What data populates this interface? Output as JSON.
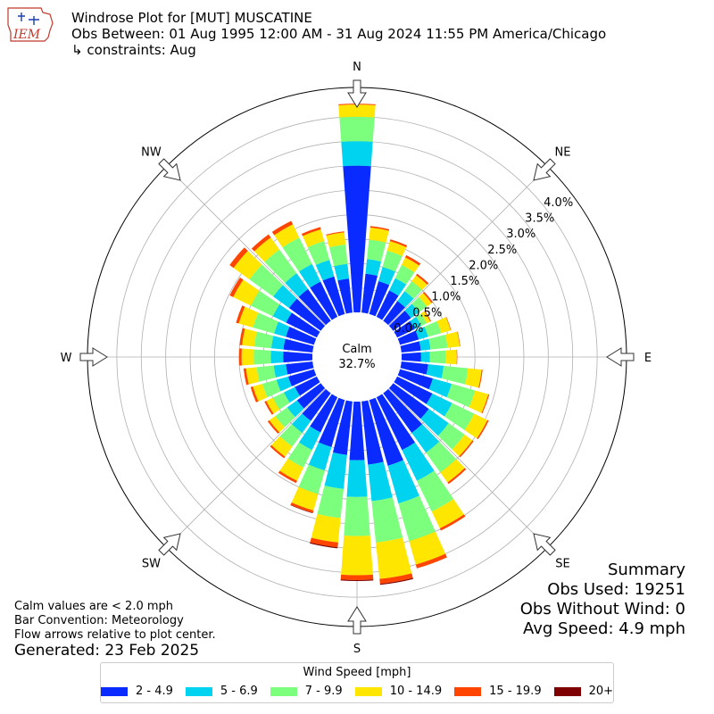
{
  "header": {
    "logo_text": "IEM",
    "title_line1": "Windrose Plot for [MUT] MUSCATINE",
    "title_line2": "Obs Between: 01 Aug 1995 12:00 AM - 31 Aug 2024 11:55 PM America/Chicago",
    "title_line3": "↳ constraints: Aug"
  },
  "summary": {
    "heading": "Summary",
    "obs_used": "Obs Used: 19251",
    "obs_without_wind": "Obs Without Wind: 0",
    "avg_speed": "Avg Speed: 4.9 mph"
  },
  "notes": {
    "line1": "Calm values are < 2.0 mph",
    "line2": "Bar Convention: Meteorology",
    "line3": "Flow arrows relative to plot center.",
    "generated": "Generated: 23 Feb 2025"
  },
  "legend": {
    "title": "Wind Speed [mph]",
    "items": [
      {
        "label": "2 - 4.9",
        "color": "#0a2bff"
      },
      {
        "label": "5 - 6.9",
        "color": "#00d3f0"
      },
      {
        "label": "7 - 9.9",
        "color": "#7cff7c"
      },
      {
        "label": "10 - 14.9",
        "color": "#ffe600"
      },
      {
        "label": "15 - 19.9",
        "color": "#ff4500"
      },
      {
        "label": "20+",
        "color": "#7f0000"
      }
    ]
  },
  "chart_data": {
    "type": "windrose",
    "calm_label": "Calm",
    "calm_percent": "32.7%",
    "radial_unit": "percent",
    "radial_ticks": [
      "0.0%",
      "0.5%",
      "1.0%",
      "1.5%",
      "2.0%",
      "2.5%",
      "3.0%",
      "3.5%",
      "4.0%"
    ],
    "radial_max": 4.6,
    "directions": [
      "N",
      "NE",
      "E",
      "SE",
      "S",
      "SW",
      "W",
      "NW"
    ],
    "speed_bins": [
      "2 - 4.9",
      "5 - 6.9",
      "7 - 9.9",
      "10 - 14.9",
      "15 - 19.9",
      "20+"
    ],
    "sectors": [
      {
        "dir": 0,
        "values": [
          3.0,
          0.5,
          0.5,
          0.25,
          0.02,
          0.0
        ]
      },
      {
        "dir": 10,
        "values": [
          0.8,
          0.3,
          0.4,
          0.25,
          0.03,
          0.0
        ]
      },
      {
        "dir": 20,
        "values": [
          0.7,
          0.3,
          0.35,
          0.2,
          0.04,
          0.0
        ]
      },
      {
        "dir": 30,
        "values": [
          0.6,
          0.28,
          0.3,
          0.17,
          0.05,
          0.0
        ]
      },
      {
        "dir": 40,
        "values": [
          0.5,
          0.25,
          0.25,
          0.15,
          0.04,
          0.0
        ]
      },
      {
        "dir": 50,
        "values": [
          0.45,
          0.2,
          0.2,
          0.12,
          0.03,
          0.0
        ]
      },
      {
        "dir": 60,
        "values": [
          0.4,
          0.15,
          0.12,
          0.08,
          0.02,
          0.0
        ]
      },
      {
        "dir": 70,
        "values": [
          0.4,
          0.2,
          0.28,
          0.2,
          0.01,
          0.0
        ]
      },
      {
        "dir": 80,
        "values": [
          0.4,
          0.2,
          0.35,
          0.25,
          0.01,
          0.0
        ]
      },
      {
        "dir": 90,
        "values": [
          0.4,
          0.18,
          0.33,
          0.22,
          0.01,
          0.0
        ]
      },
      {
        "dir": 100,
        "values": [
          0.55,
          0.32,
          0.5,
          0.28,
          0.02,
          0.0
        ]
      },
      {
        "dir": 110,
        "values": [
          0.7,
          0.4,
          0.5,
          0.28,
          0.02,
          0.0
        ]
      },
      {
        "dir": 120,
        "values": [
          0.8,
          0.45,
          0.5,
          0.3,
          0.03,
          0.0
        ]
      },
      {
        "dir": 130,
        "values": [
          0.9,
          0.5,
          0.4,
          0.2,
          0.03,
          0.0
        ]
      },
      {
        "dir": 140,
        "values": [
          1.0,
          0.5,
          0.5,
          0.25,
          0.04,
          0.0
        ]
      },
      {
        "dir": 150,
        "values": [
          1.2,
          0.7,
          0.7,
          0.38,
          0.05,
          0.0
        ]
      },
      {
        "dir": 160,
        "values": [
          1.4,
          0.8,
          0.8,
          0.5,
          0.08,
          0.0
        ]
      },
      {
        "dir": 170,
        "values": [
          1.3,
          0.75,
          0.85,
          0.75,
          0.1,
          0.02
        ]
      },
      {
        "dir": 180,
        "values": [
          1.2,
          0.75,
          0.8,
          0.8,
          0.1,
          0.02
        ]
      },
      {
        "dir": 190,
        "values": [
          1.1,
          0.7,
          0.6,
          0.5,
          0.1,
          0.02
        ]
      },
      {
        "dir": 200,
        "values": [
          1.0,
          0.5,
          0.5,
          0.35,
          0.05,
          0.01
        ]
      },
      {
        "dir": 210,
        "values": [
          0.8,
          0.4,
          0.4,
          0.3,
          0.05,
          0.0
        ]
      },
      {
        "dir": 220,
        "values": [
          0.7,
          0.3,
          0.35,
          0.25,
          0.04,
          0.0
        ]
      },
      {
        "dir": 230,
        "values": [
          0.6,
          0.25,
          0.3,
          0.15,
          0.04,
          0.0
        ]
      },
      {
        "dir": 240,
        "values": [
          0.5,
          0.25,
          0.25,
          0.15,
          0.04,
          0.0
        ]
      },
      {
        "dir": 250,
        "values": [
          0.55,
          0.25,
          0.3,
          0.2,
          0.05,
          0.0
        ]
      },
      {
        "dir": 260,
        "values": [
          0.55,
          0.25,
          0.35,
          0.22,
          0.05,
          0.0
        ]
      },
      {
        "dir": 270,
        "values": [
          0.6,
          0.25,
          0.35,
          0.25,
          0.05,
          0.0
        ]
      },
      {
        "dir": 280,
        "values": [
          0.6,
          0.25,
          0.35,
          0.25,
          0.05,
          0.0
        ]
      },
      {
        "dir": 290,
        "values": [
          0.6,
          0.25,
          0.45,
          0.3,
          0.06,
          0.0
        ]
      },
      {
        "dir": 300,
        "values": [
          0.7,
          0.3,
          0.5,
          0.4,
          0.08,
          0.0
        ]
      },
      {
        "dir": 310,
        "values": [
          0.8,
          0.4,
          0.6,
          0.4,
          0.1,
          0.0
        ]
      },
      {
        "dir": 320,
        "values": [
          0.8,
          0.4,
          0.6,
          0.3,
          0.08,
          0.0
        ]
      },
      {
        "dir": 330,
        "values": [
          0.8,
          0.4,
          0.6,
          0.3,
          0.08,
          0.0
        ]
      },
      {
        "dir": 340,
        "values": [
          0.8,
          0.35,
          0.4,
          0.25,
          0.05,
          0.0
        ]
      },
      {
        "dir": 350,
        "values": [
          0.7,
          0.3,
          0.4,
          0.25,
          0.02,
          0.0
        ]
      }
    ]
  }
}
